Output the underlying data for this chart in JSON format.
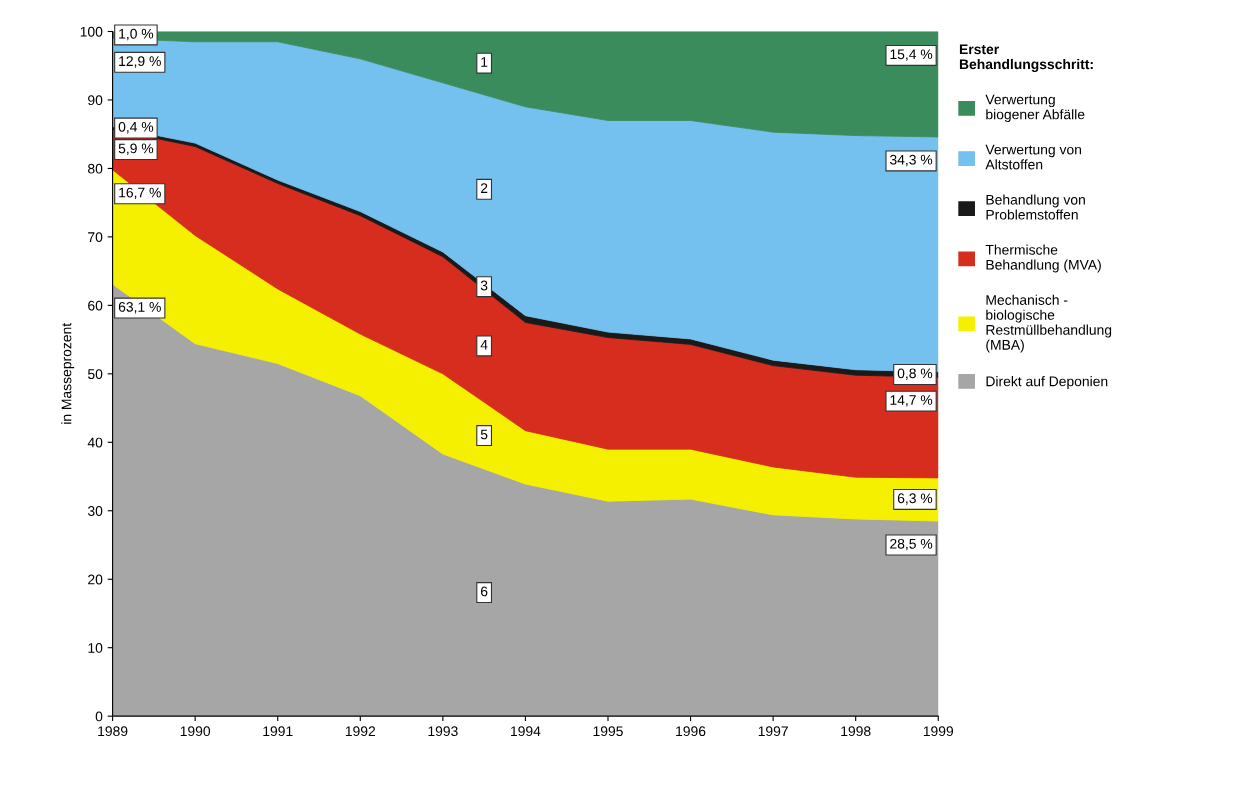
{
  "chart_data": {
    "type": "area",
    "stacked": true,
    "ylabel": "in Masseprozent",
    "legend_title": "Erster\nBehandlungsschritt:",
    "x": [
      1989,
      1990,
      1991,
      1992,
      1993,
      1994,
      1995,
      1996,
      1997,
      1998,
      1999
    ],
    "xlim": [
      1989,
      1999
    ],
    "xticks": [
      1989,
      1990,
      1991,
      1992,
      1993,
      1994,
      1995,
      1996,
      1997,
      1998,
      1999
    ],
    "ylim": [
      0,
      100
    ],
    "yticks": [
      0,
      10,
      20,
      30,
      40,
      50,
      60,
      70,
      80,
      90,
      100
    ],
    "grid": false,
    "legend": "right",
    "series": [
      {
        "name": "Direkt auf Deponien",
        "color": "#a6a6a6",
        "values": [
          63.1,
          54.4,
          51.5,
          46.8,
          38.3,
          33.9,
          31.4,
          31.7,
          29.4,
          28.8,
          28.5
        ],
        "value_labels": [
          "63,1 %",
          null,
          null,
          null,
          null,
          null,
          null,
          null,
          null,
          null,
          "28,5 %"
        ]
      },
      {
        "name": "Mechanisch -\nbiologische\nRestmüllbehandlung\n(MBA)",
        "color": "#f5f000",
        "values": [
          16.7,
          15.8,
          10.9,
          9.0,
          11.7,
          7.8,
          7.6,
          7.3,
          7.0,
          6.1,
          6.3
        ],
        "value_labels": [
          "16,7 %",
          null,
          null,
          null,
          null,
          null,
          null,
          null,
          null,
          null,
          "6,3 %"
        ]
      },
      {
        "name": "Thermische\nBehandlung (MVA)",
        "color": "#d62d1e",
        "values": [
          5.9,
          13.0,
          15.4,
          17.3,
          17.1,
          15.8,
          16.3,
          15.3,
          14.8,
          14.9,
          14.7
        ],
        "value_labels": [
          "5,9 %",
          null,
          null,
          null,
          null,
          null,
          null,
          null,
          null,
          null,
          "14,7 %"
        ]
      },
      {
        "name": "Behandlung von\nProblemstoffen",
        "color": "#1a1a1a",
        "values": [
          0.4,
          0.5,
          0.5,
          0.6,
          0.7,
          1.0,
          0.8,
          0.8,
          0.8,
          0.8,
          0.8
        ],
        "value_labels": [
          "0,4 %",
          null,
          null,
          null,
          null,
          null,
          null,
          null,
          null,
          null,
          "0,8 %"
        ]
      },
      {
        "name": "Verwertung von\nAltstoffen",
        "color": "#74c0ee",
        "values": [
          12.9,
          14.8,
          20.2,
          22.3,
          24.7,
          30.5,
          30.9,
          31.9,
          33.3,
          34.2,
          34.3
        ],
        "value_labels": [
          "12,9 %",
          null,
          null,
          null,
          null,
          null,
          null,
          null,
          null,
          null,
          "34,3 %"
        ]
      },
      {
        "name": "Verwertung\nbiogener Abfälle",
        "color": "#3a8c5c",
        "values": [
          1.0,
          1.5,
          1.5,
          4.0,
          7.5,
          11.0,
          13.0,
          13.0,
          14.7,
          15.2,
          15.4
        ],
        "value_labels": [
          "1,0 %",
          null,
          null,
          null,
          null,
          null,
          null,
          null,
          null,
          null,
          "15,4 %"
        ]
      }
    ],
    "annotations": [
      "1",
      "2",
      "3",
      "4",
      "5",
      "6"
    ]
  }
}
